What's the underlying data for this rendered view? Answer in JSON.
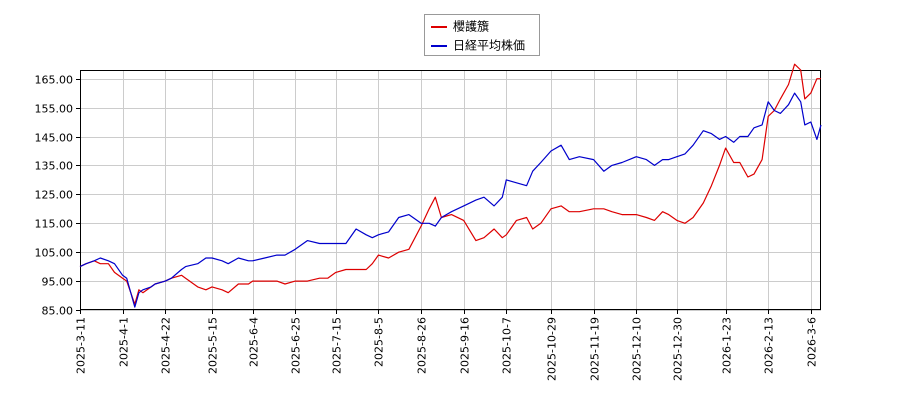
{
  "chart_data": {
    "type": "line",
    "title": "",
    "xlabel": "",
    "ylabel": "",
    "ylim": [
      85,
      168
    ],
    "yticks": [
      85,
      95,
      105,
      115,
      125,
      135,
      145,
      155,
      165
    ],
    "ytick_labels": [
      "85.00",
      "95.00",
      "105.00",
      "115.00",
      "125.00",
      "135.00",
      "145.00",
      "155.00",
      "165.00"
    ],
    "xtick_labels": [
      "2025-3-11",
      "2025-4-1",
      "2025-4-22",
      "2025-5-15",
      "2025-6-4",
      "2025-6-25",
      "2025-7-15",
      "2025-8-5",
      "2025-8-26",
      "2025-9-16",
      "2025-10-7",
      "2025-10-29",
      "2025-11-19",
      "2025-12-10",
      "2025-12-30",
      "2026-1-23",
      "2026-2-13",
      "2026-3-6"
    ],
    "grid": true,
    "legend_position": "top-center",
    "series": [
      {
        "name": "櫻護籏",
        "color": "#dd0000",
        "points": [
          [
            "2025-3-11",
            100
          ],
          [
            "2025-3-14",
            101
          ],
          [
            "2025-3-18",
            102
          ],
          [
            "2025-3-21",
            101
          ],
          [
            "2025-3-25",
            101
          ],
          [
            "2025-3-28",
            98
          ],
          [
            "2025-4-1",
            96
          ],
          [
            "2025-4-3",
            95
          ],
          [
            "2025-4-7",
            87
          ],
          [
            "2025-4-9",
            92
          ],
          [
            "2025-4-11",
            91
          ],
          [
            "2025-4-15",
            93
          ],
          [
            "2025-4-17",
            94
          ],
          [
            "2025-4-22",
            95
          ],
          [
            "2025-4-25",
            96
          ],
          [
            "2025-4-30",
            97
          ],
          [
            "2025-5-2",
            96
          ],
          [
            "2025-5-8",
            93
          ],
          [
            "2025-5-12",
            92
          ],
          [
            "2025-5-15",
            93
          ],
          [
            "2025-5-20",
            92
          ],
          [
            "2025-5-23",
            91
          ],
          [
            "2025-5-28",
            94
          ],
          [
            "2025-6-2",
            94
          ],
          [
            "2025-6-4",
            95
          ],
          [
            "2025-6-10",
            95
          ],
          [
            "2025-6-16",
            95
          ],
          [
            "2025-6-20",
            94
          ],
          [
            "2025-6-25",
            95
          ],
          [
            "2025-7-1",
            95
          ],
          [
            "2025-7-7",
            96
          ],
          [
            "2025-7-11",
            96
          ],
          [
            "2025-7-15",
            98
          ],
          [
            "2025-7-20",
            99
          ],
          [
            "2025-7-25",
            99
          ],
          [
            "2025-7-30",
            99
          ],
          [
            "2025-8-2",
            101
          ],
          [
            "2025-8-5",
            104
          ],
          [
            "2025-8-10",
            103
          ],
          [
            "2025-8-15",
            105
          ],
          [
            "2025-8-20",
            106
          ],
          [
            "2025-8-26",
            114
          ],
          [
            "2025-8-30",
            120
          ],
          [
            "2025-9-2",
            124
          ],
          [
            "2025-9-5",
            117
          ],
          [
            "2025-9-10",
            118
          ],
          [
            "2025-9-16",
            116
          ],
          [
            "2025-9-22",
            109
          ],
          [
            "2025-9-26",
            110
          ],
          [
            "2025-10-1",
            113
          ],
          [
            "2025-10-5",
            110
          ],
          [
            "2025-10-7",
            111
          ],
          [
            "2025-10-12",
            116
          ],
          [
            "2025-10-17",
            117
          ],
          [
            "2025-10-20",
            113
          ],
          [
            "2025-10-24",
            115
          ],
          [
            "2025-10-29",
            120
          ],
          [
            "2025-11-3",
            121
          ],
          [
            "2025-11-7",
            119
          ],
          [
            "2025-11-12",
            119
          ],
          [
            "2025-11-19",
            120
          ],
          [
            "2025-11-24",
            120
          ],
          [
            "2025-11-28",
            119
          ],
          [
            "2025-12-3",
            118
          ],
          [
            "2025-12-10",
            118
          ],
          [
            "2025-12-15",
            117
          ],
          [
            "2025-12-19",
            116
          ],
          [
            "2025-12-23",
            119
          ],
          [
            "2025-12-26",
            118
          ],
          [
            "2025-12-30",
            116
          ],
          [
            "2026-1-3",
            115
          ],
          [
            "2026-1-7",
            117
          ],
          [
            "2026-1-12",
            122
          ],
          [
            "2026-1-16",
            128
          ],
          [
            "2026-1-20",
            135
          ],
          [
            "2026-1-23",
            141
          ],
          [
            "2026-1-27",
            136
          ],
          [
            "2026-1-30",
            136
          ],
          [
            "2026-2-3",
            131
          ],
          [
            "2026-2-6",
            132
          ],
          [
            "2026-2-10",
            137
          ],
          [
            "2026-2-13",
            152
          ],
          [
            "2026-2-16",
            154
          ],
          [
            "2026-2-19",
            158
          ],
          [
            "2026-2-23",
            163
          ],
          [
            "2026-2-26",
            170
          ],
          [
            "2026-3-1",
            168
          ],
          [
            "2026-3-3",
            158
          ],
          [
            "2026-3-6",
            160
          ],
          [
            "2026-3-9",
            165
          ],
          [
            "2026-3-11",
            165
          ]
        ]
      },
      {
        "name": "日経平均株価",
        "color": "#0000cc",
        "points": [
          [
            "2025-3-11",
            100
          ],
          [
            "2025-3-14",
            101
          ],
          [
            "2025-3-18",
            102
          ],
          [
            "2025-3-21",
            103
          ],
          [
            "2025-3-25",
            102
          ],
          [
            "2025-3-28",
            101
          ],
          [
            "2025-4-1",
            97
          ],
          [
            "2025-4-3",
            96
          ],
          [
            "2025-4-7",
            86
          ],
          [
            "2025-4-9",
            91
          ],
          [
            "2025-4-11",
            92
          ],
          [
            "2025-4-15",
            93
          ],
          [
            "2025-4-17",
            94
          ],
          [
            "2025-4-22",
            95
          ],
          [
            "2025-4-25",
            96
          ],
          [
            "2025-4-30",
            99
          ],
          [
            "2025-5-2",
            100
          ],
          [
            "2025-5-8",
            101
          ],
          [
            "2025-5-12",
            103
          ],
          [
            "2025-5-15",
            103
          ],
          [
            "2025-5-20",
            102
          ],
          [
            "2025-5-23",
            101
          ],
          [
            "2025-5-28",
            103
          ],
          [
            "2025-6-2",
            102
          ],
          [
            "2025-6-4",
            102
          ],
          [
            "2025-6-10",
            103
          ],
          [
            "2025-6-16",
            104
          ],
          [
            "2025-6-20",
            104
          ],
          [
            "2025-6-25",
            106
          ],
          [
            "2025-7-1",
            109
          ],
          [
            "2025-7-7",
            108
          ],
          [
            "2025-7-11",
            108
          ],
          [
            "2025-7-15",
            108
          ],
          [
            "2025-7-20",
            108
          ],
          [
            "2025-7-25",
            113
          ],
          [
            "2025-7-30",
            111
          ],
          [
            "2025-8-2",
            110
          ],
          [
            "2025-8-5",
            111
          ],
          [
            "2025-8-10",
            112
          ],
          [
            "2025-8-15",
            117
          ],
          [
            "2025-8-20",
            118
          ],
          [
            "2025-8-26",
            115
          ],
          [
            "2025-8-30",
            115
          ],
          [
            "2025-9-2",
            114
          ],
          [
            "2025-9-5",
            117
          ],
          [
            "2025-9-10",
            119
          ],
          [
            "2025-9-16",
            121
          ],
          [
            "2025-9-22",
            123
          ],
          [
            "2025-9-26",
            124
          ],
          [
            "2025-10-1",
            121
          ],
          [
            "2025-10-5",
            124
          ],
          [
            "2025-10-7",
            130
          ],
          [
            "2025-10-12",
            129
          ],
          [
            "2025-10-17",
            128
          ],
          [
            "2025-10-20",
            133
          ],
          [
            "2025-10-24",
            136
          ],
          [
            "2025-10-29",
            140
          ],
          [
            "2025-11-3",
            142
          ],
          [
            "2025-11-7",
            137
          ],
          [
            "2025-11-12",
            138
          ],
          [
            "2025-11-19",
            137
          ],
          [
            "2025-11-24",
            133
          ],
          [
            "2025-11-28",
            135
          ],
          [
            "2025-12-3",
            136
          ],
          [
            "2025-12-10",
            138
          ],
          [
            "2025-12-15",
            137
          ],
          [
            "2025-12-19",
            135
          ],
          [
            "2025-12-23",
            137
          ],
          [
            "2025-12-26",
            137
          ],
          [
            "2025-12-30",
            138
          ],
          [
            "2026-1-3",
            139
          ],
          [
            "2026-1-7",
            142
          ],
          [
            "2026-1-12",
            147
          ],
          [
            "2026-1-16",
            146
          ],
          [
            "2026-1-20",
            144
          ],
          [
            "2026-1-23",
            145
          ],
          [
            "2026-1-27",
            143
          ],
          [
            "2026-1-30",
            145
          ],
          [
            "2026-2-3",
            145
          ],
          [
            "2026-2-6",
            148
          ],
          [
            "2026-2-10",
            149
          ],
          [
            "2026-2-13",
            157
          ],
          [
            "2026-2-16",
            154
          ],
          [
            "2026-2-19",
            153
          ],
          [
            "2026-2-23",
            156
          ],
          [
            "2026-2-26",
            160
          ],
          [
            "2026-3-1",
            157
          ],
          [
            "2026-3-3",
            149
          ],
          [
            "2026-3-6",
            150
          ],
          [
            "2026-3-9",
            144
          ],
          [
            "2026-3-11",
            149
          ]
        ]
      }
    ]
  }
}
